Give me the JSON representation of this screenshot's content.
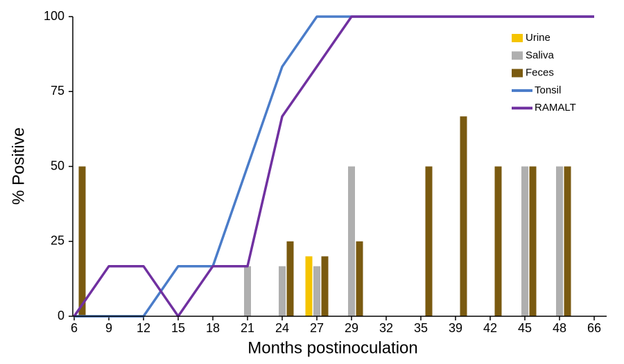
{
  "chart_data": {
    "type": "bar",
    "x_label": "Months postinoculation",
    "y_label": "% Positive",
    "categories": [
      "6",
      "9",
      "12",
      "15",
      "18",
      "21",
      "24",
      "27",
      "29",
      "32",
      "35",
      "39",
      "42",
      "45",
      "48",
      "66"
    ],
    "series": [
      {
        "name": "Urine",
        "type": "bar",
        "color": "#f5c400",
        "values": [
          0,
          0,
          0,
          0,
          0,
          0,
          0,
          20,
          0,
          0,
          0,
          0,
          0,
          0,
          0,
          0
        ]
      },
      {
        "name": "Saliva",
        "type": "bar",
        "color": "#afafaf",
        "values": [
          0,
          0,
          0,
          0,
          0,
          16.7,
          16.7,
          16.7,
          50,
          0,
          0,
          0,
          0,
          50,
          50,
          0
        ]
      },
      {
        "name": "Feces",
        "type": "bar",
        "color": "#7a5a10",
        "values": [
          50,
          0,
          0,
          0,
          0,
          0,
          25,
          20,
          25,
          0,
          50,
          66.7,
          50,
          50,
          50,
          0
        ]
      },
      {
        "name": "Tonsil",
        "type": "line",
        "color": "#4a7cc9",
        "values": [
          0,
          0,
          0,
          16.7,
          16.7,
          50,
          83.3,
          100,
          100,
          100,
          100,
          100,
          100,
          100,
          100,
          100
        ]
      },
      {
        "name": "RAMALT",
        "type": "line",
        "color": "#7030a0",
        "values": [
          0,
          16.7,
          16.7,
          0,
          16.7,
          16.7,
          66.7,
          83.3,
          100,
          100,
          100,
          100,
          100,
          100,
          100,
          100
        ]
      }
    ],
    "ylim": [
      0,
      100
    ],
    "yticks": [
      0,
      25,
      50,
      75,
      100
    ],
    "grid": false,
    "legend": "upper right"
  }
}
